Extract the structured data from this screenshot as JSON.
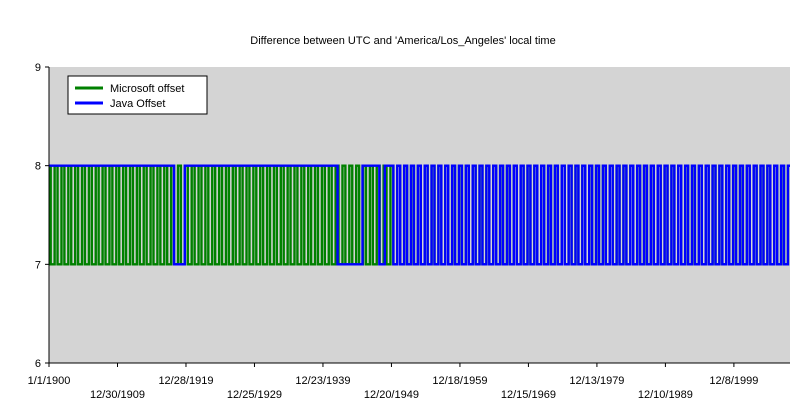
{
  "chart_data": {
    "type": "line",
    "title": "Difference between UTC and 'America/Los_Angeles' local time",
    "xlabel": "",
    "ylabel": "",
    "ylim": [
      6,
      9
    ],
    "yticks": [
      6,
      7,
      8,
      9
    ],
    "xlim": [
      "1900-01-01",
      "2008-02-14"
    ],
    "grid": false,
    "plot_background": "#d4d4d4",
    "legend": {
      "placement": "top-left"
    },
    "xticks": [
      {
        "label": "1/1/1900",
        "date": "1900-01-01"
      },
      {
        "label": "12/30/1909",
        "date": "1909-12-30"
      },
      {
        "label": "12/28/1919",
        "date": "1919-12-28"
      },
      {
        "label": "12/25/1929",
        "date": "1929-12-25"
      },
      {
        "label": "12/23/1939",
        "date": "1939-12-23"
      },
      {
        "label": "12/20/1949",
        "date": "1949-12-20"
      },
      {
        "label": "12/18/1959",
        "date": "1959-12-18"
      },
      {
        "label": "12/15/1969",
        "date": "1969-12-15"
      },
      {
        "label": "12/13/1979",
        "date": "1979-12-13"
      },
      {
        "label": "12/10/1989",
        "date": "1989-12-10"
      },
      {
        "label": "12/8/1999",
        "date": "1999-12-08"
      }
    ],
    "series": [
      {
        "name": "Microsoft offset",
        "color": "#008000",
        "pattern": "annual oscillation between 8 (standard time) and 7 (daylight saving time), one cycle per year",
        "x_start": 1900,
        "x_end": 2008,
        "values": [
          8,
          7
        ]
      },
      {
        "name": "Java Offset",
        "color": "#0000ff",
        "pattern": "constant 8 through 1917, 7 in 1918-1919, constant 8 1919-1942, 7 Feb 1942 - Sep 1945, 8 then annual 8/7 oscillation from 1948 onward",
        "segments": [
          {
            "from": "1900-01-01",
            "to": "1918-03-31",
            "value": 8
          },
          {
            "from": "1918-03-31",
            "to": "1919-10-26",
            "value": 7
          },
          {
            "from": "1919-10-26",
            "to": "1942-02-09",
            "value": 8
          },
          {
            "from": "1942-02-09",
            "to": "1945-09-30",
            "value": 7
          },
          {
            "from": "1945-09-30",
            "to": "1948-03-14",
            "value": 8
          },
          {
            "from": "1948-03-14",
            "to": "1949-01-01",
            "value": 7
          },
          {
            "from": "1949-01-01",
            "to": "1950-04-30",
            "value": 8
          }
        ],
        "annual_from": 1950,
        "annual_to": 2008,
        "values": [
          8,
          7
        ]
      }
    ]
  }
}
